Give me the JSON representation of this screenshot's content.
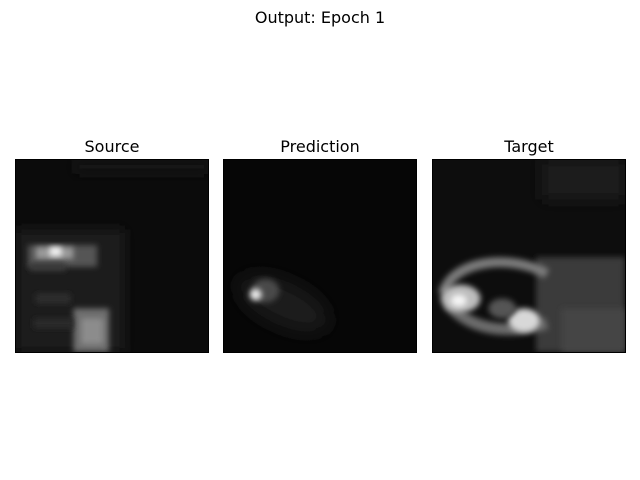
{
  "figure": {
    "title": "Output: Epoch 1"
  },
  "panels": [
    {
      "title": "Source"
    },
    {
      "title": "Prediction"
    },
    {
      "title": "Target"
    }
  ],
  "colors": {
    "background": "#ffffff",
    "image_base": "#000000",
    "colormap": "gray"
  }
}
